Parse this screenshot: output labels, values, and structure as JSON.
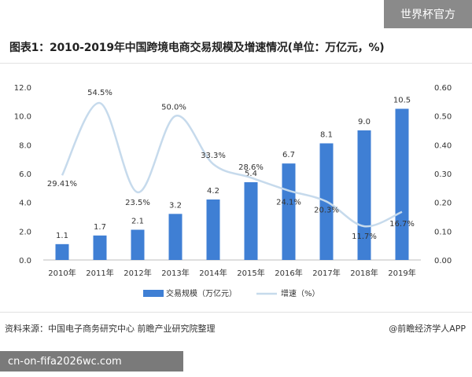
{
  "badge": "世界杯官方",
  "title": "图表1：2010-2019年中国跨境电商交易规模及增速情况(单位：万亿元，%)",
  "source": "资料来源：中国电子商务研究中心 前瞻产业研究院整理",
  "credit": "@前瞻经济学人APP",
  "url_banner": "cn-on-fifa2026wc.com",
  "chart_data": {
    "type": "bar",
    "categories": [
      "2010年",
      "2011年",
      "2012年",
      "2013年",
      "2014年",
      "2015年",
      "2016年",
      "2017年",
      "2018年",
      "2019年"
    ],
    "series": [
      {
        "name": "交易规模（万亿元）",
        "type": "bar",
        "axis": "left",
        "color": "#3f7fd4",
        "values": [
          1.1,
          1.7,
          2.1,
          3.2,
          4.2,
          5.4,
          6.7,
          8.1,
          9.0,
          10.5
        ],
        "labels": [
          "1.1",
          "1.7",
          "2.1",
          "3.2",
          "4.2",
          "5.4",
          "6.7",
          "8.1",
          "9.0",
          "10.5"
        ]
      },
      {
        "name": "增速（%）",
        "type": "line",
        "smooth": true,
        "axis": "right",
        "color": "#c6daec",
        "values": [
          0.2941,
          0.545,
          0.235,
          0.5,
          0.333,
          0.286,
          0.241,
          0.203,
          0.117,
          0.167
        ],
        "labels": [
          "29.41%",
          "54.5%",
          "23.5%",
          "50.0%",
          "33.3%",
          "28.6%",
          "24.1%",
          "20.3%",
          "11.7%",
          "16.7%"
        ]
      }
    ],
    "y_left": {
      "min": 0,
      "max": 12,
      "step": 2,
      "ticks": [
        "0.0",
        "2.0",
        "4.0",
        "6.0",
        "8.0",
        "10.0",
        "12.0"
      ]
    },
    "y_right": {
      "min": 0,
      "max": 0.6,
      "step": 0.1,
      "ticks": [
        "0.00",
        "0.10",
        "0.20",
        "0.30",
        "0.40",
        "0.50",
        "0.60"
      ]
    },
    "grid": false,
    "legend": "bottom"
  }
}
